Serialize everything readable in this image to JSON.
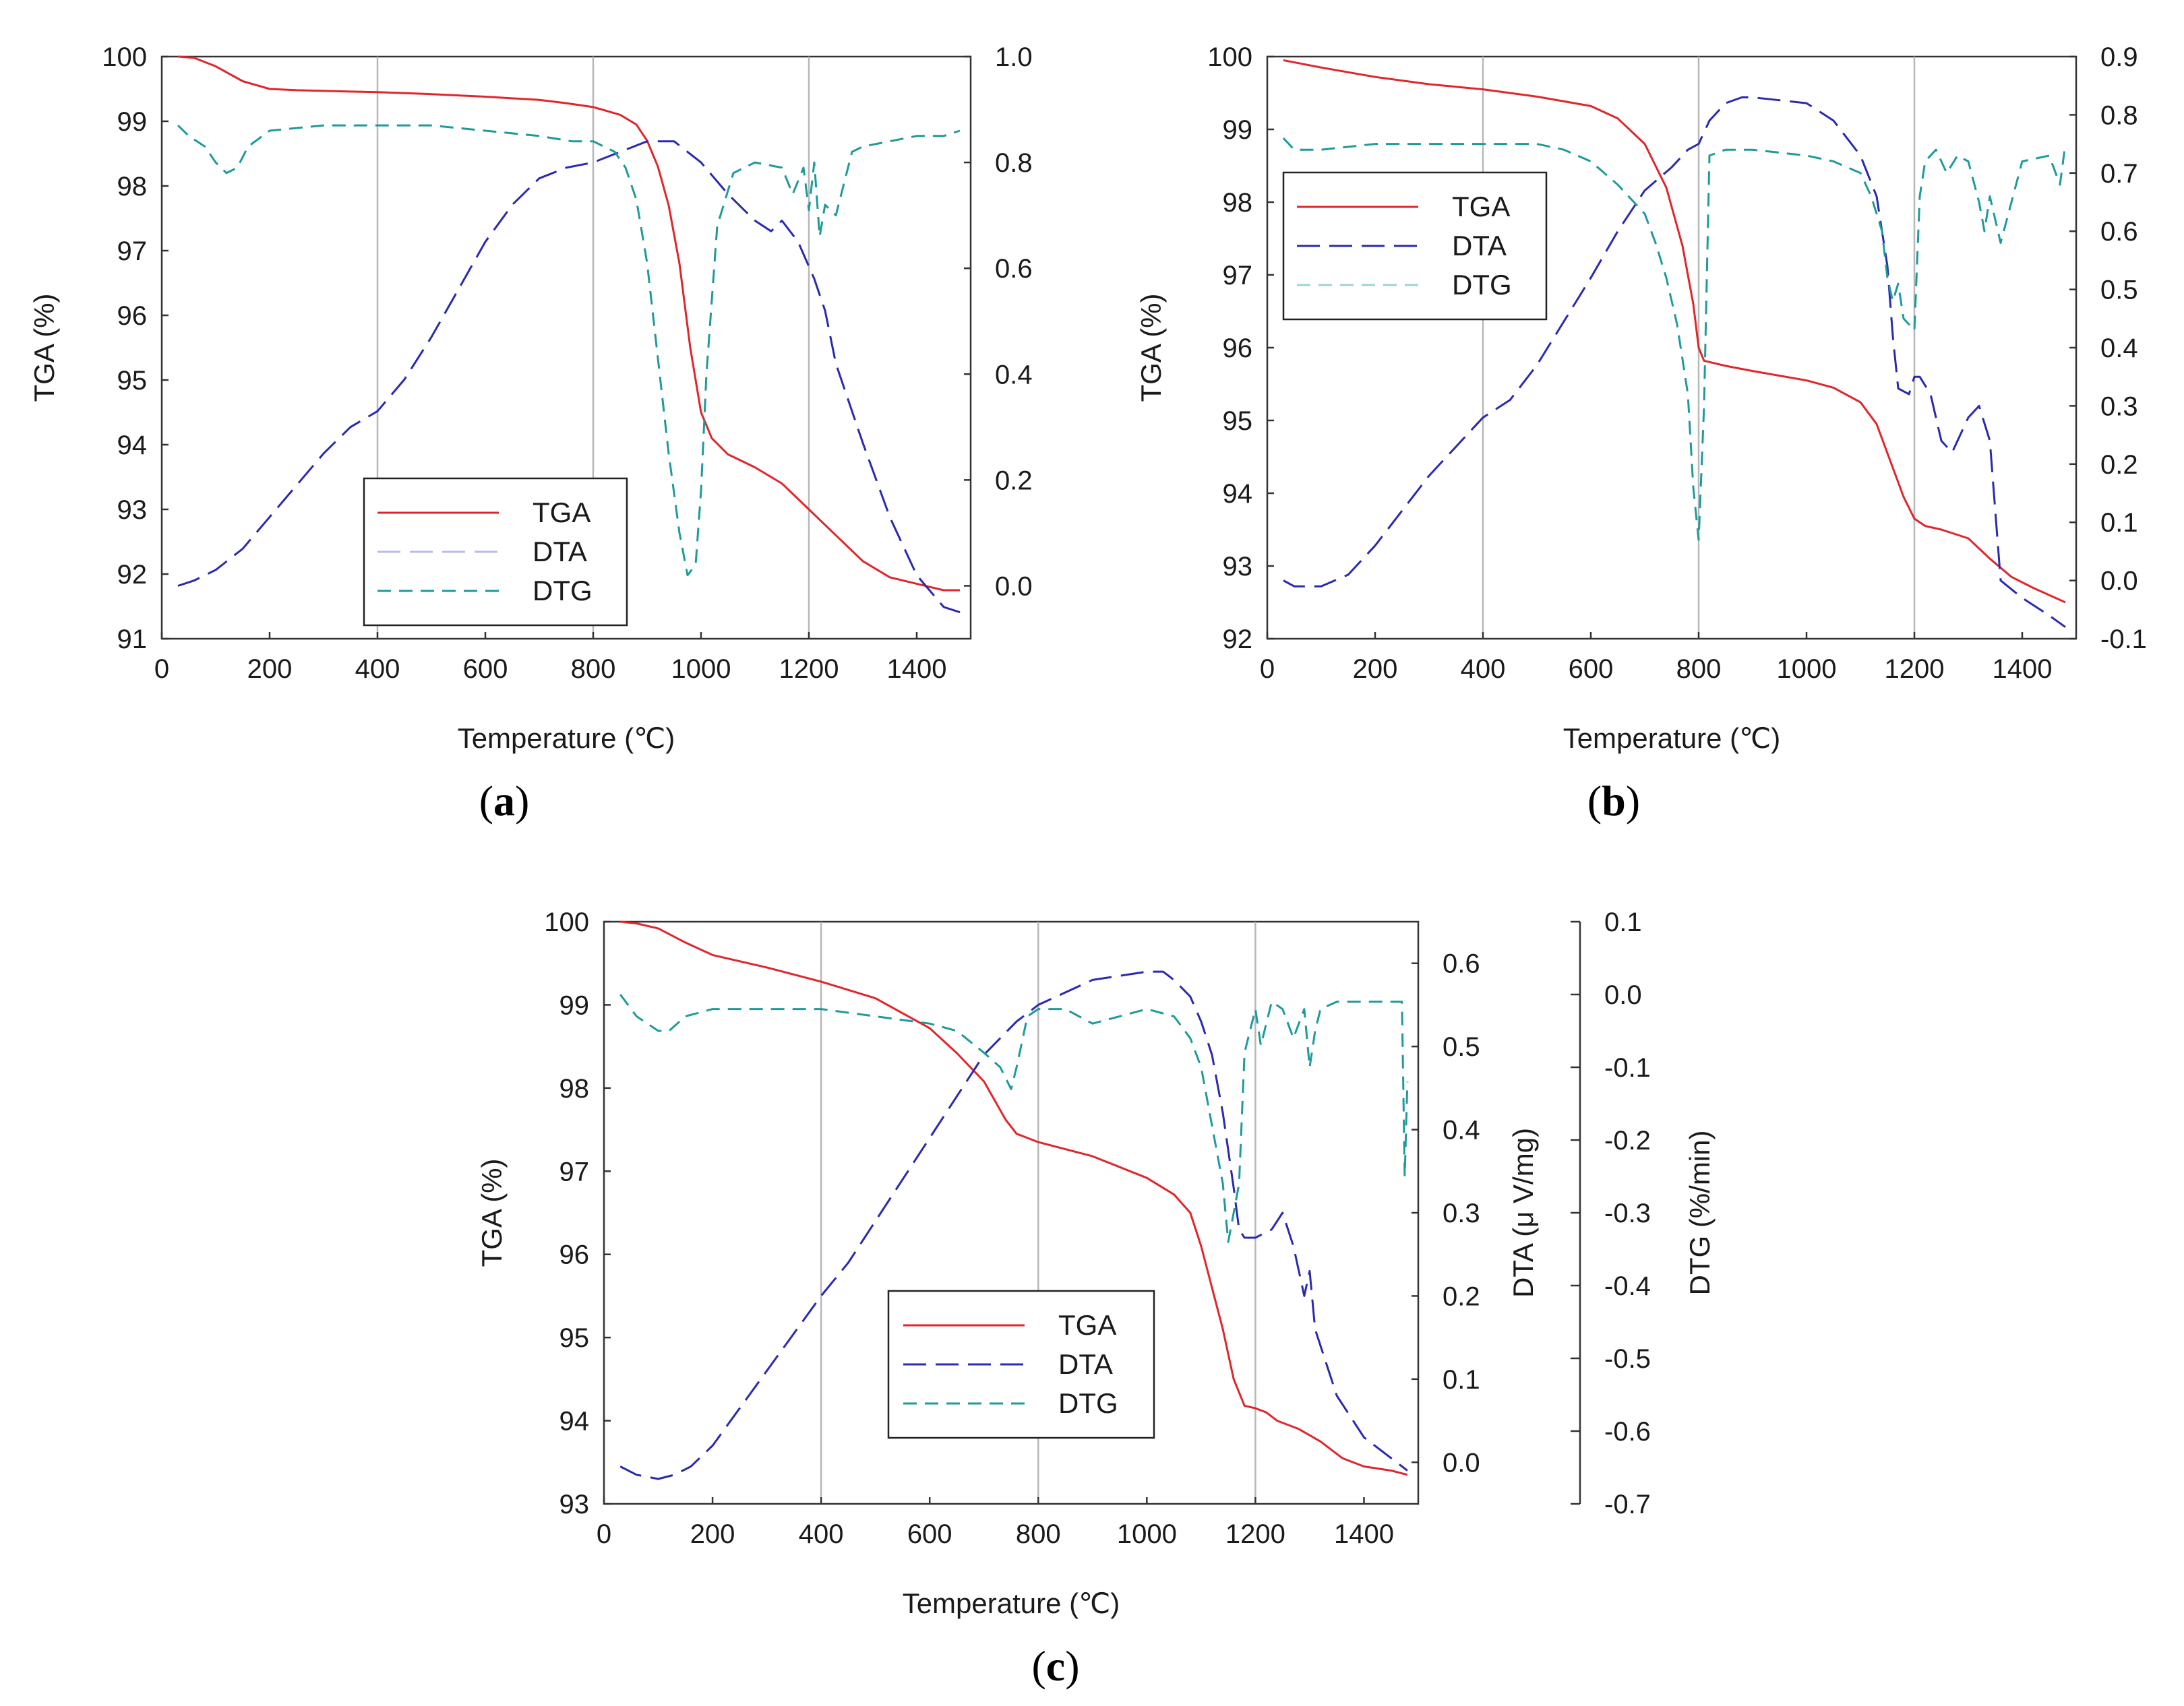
{
  "figure": {
    "colors": {
      "tga": "#e0262a",
      "dta": "#2a2ab0",
      "dtg": "#1f9a9a",
      "grid": "#b8b8b8",
      "axis": "#333333"
    }
  },
  "chart_data": [
    {
      "id": "a",
      "type": "line",
      "panel_label_parts": [
        "(",
        "a",
        ")"
      ],
      "xlabel": "Temperature (℃)",
      "ylabel": "TGA (%)",
      "y2label": "",
      "y3label": "",
      "xlim": [
        0,
        1500
      ],
      "ylim": [
        91,
        100
      ],
      "y2lim": [
        -0.1,
        1.0
      ],
      "xticks": [
        0,
        200,
        400,
        600,
        800,
        1000,
        1200,
        1400
      ],
      "yticks": [
        91,
        92,
        93,
        94,
        95,
        96,
        97,
        98,
        99,
        100
      ],
      "y2ticks": [
        0.0,
        0.2,
        0.4,
        0.6,
        0.8,
        1.0
      ],
      "y2tick_labels": [
        "0.0",
        "0.2",
        "0.4",
        "0.6",
        "0.8",
        "1.0"
      ],
      "grid_x": [
        400,
        800,
        1200
      ],
      "legend": {
        "placement": "bottom-center",
        "entries": [
          "TGA",
          "DTA",
          "DTG"
        ]
      },
      "series": [
        {
          "name": "TGA",
          "axis": "left",
          "x": [
            30,
            60,
            100,
            150,
            200,
            250,
            300,
            400,
            500,
            600,
            700,
            750,
            800,
            850,
            880,
            900,
            920,
            940,
            960,
            980,
            1000,
            1020,
            1050,
            1100,
            1150,
            1200,
            1250,
            1300,
            1350,
            1400,
            1450,
            1480
          ],
          "y": [
            100,
            99.98,
            99.85,
            99.62,
            99.5,
            99.48,
            99.47,
            99.45,
            99.42,
            99.38,
            99.33,
            99.28,
            99.22,
            99.1,
            98.95,
            98.7,
            98.3,
            97.7,
            96.8,
            95.5,
            94.5,
            94.1,
            93.85,
            93.65,
            93.4,
            93.0,
            92.6,
            92.2,
            91.95,
            91.85,
            91.75,
            91.75
          ]
        },
        {
          "name": "DTA",
          "axis": "right",
          "x": [
            30,
            60,
            100,
            150,
            200,
            250,
            300,
            350,
            400,
            450,
            500,
            550,
            600,
            650,
            700,
            750,
            800,
            850,
            900,
            950,
            1000,
            1050,
            1100,
            1130,
            1150,
            1180,
            1210,
            1230,
            1250,
            1300,
            1350,
            1400,
            1450,
            1480
          ],
          "y": [
            0.0,
            0.01,
            0.03,
            0.07,
            0.13,
            0.19,
            0.25,
            0.3,
            0.33,
            0.39,
            0.47,
            0.56,
            0.65,
            0.72,
            0.77,
            0.79,
            0.8,
            0.82,
            0.84,
            0.84,
            0.8,
            0.74,
            0.69,
            0.67,
            0.69,
            0.65,
            0.58,
            0.52,
            0.42,
            0.27,
            0.13,
            0.02,
            -0.04,
            -0.05
          ]
        },
        {
          "name": "DTG",
          "axis": "right",
          "x": [
            30,
            50,
            80,
            100,
            120,
            140,
            160,
            200,
            300,
            400,
            500,
            600,
            700,
            760,
            800,
            840,
            860,
            880,
            900,
            920,
            940,
            960,
            975,
            990,
            1000,
            1010,
            1030,
            1060,
            1100,
            1150,
            1170,
            1190,
            1200,
            1210,
            1220,
            1230,
            1250,
            1280,
            1300,
            1350,
            1400,
            1450,
            1480
          ],
          "y": [
            0.87,
            0.85,
            0.83,
            0.8,
            0.78,
            0.79,
            0.83,
            0.86,
            0.87,
            0.87,
            0.87,
            0.86,
            0.85,
            0.84,
            0.84,
            0.82,
            0.79,
            0.73,
            0.61,
            0.43,
            0.25,
            0.1,
            0.02,
            0.04,
            0.18,
            0.4,
            0.68,
            0.78,
            0.8,
            0.79,
            0.74,
            0.79,
            0.71,
            0.8,
            0.66,
            0.72,
            0.7,
            0.82,
            0.83,
            0.84,
            0.85,
            0.85,
            0.86
          ]
        }
      ]
    },
    {
      "id": "b",
      "type": "line",
      "panel_label_parts": [
        "(",
        "b",
        ")"
      ],
      "xlabel": "Temperature (℃)",
      "ylabel": "TGA (%)",
      "y2label": "",
      "y3label": "",
      "xlim": [
        0,
        1500
      ],
      "ylim": [
        92,
        100
      ],
      "y2lim": [
        -0.1,
        0.9
      ],
      "xticks": [
        0,
        200,
        400,
        600,
        800,
        1000,
        1200,
        1400
      ],
      "yticks": [
        92,
        93,
        94,
        95,
        96,
        97,
        98,
        99,
        100
      ],
      "y2ticks": [
        -0.1,
        0.0,
        0.1,
        0.2,
        0.3,
        0.4,
        0.5,
        0.6,
        0.7,
        0.8,
        0.9
      ],
      "y2tick_labels": [
        "-0.1",
        "0.0",
        "0.1",
        "0.2",
        "0.3",
        "0.4",
        "0.5",
        "0.6",
        "0.7",
        "0.8",
        "0.9"
      ],
      "grid_x": [
        400,
        800,
        1200
      ],
      "legend": {
        "placement": "top-left",
        "entries": [
          "TGA",
          "DTA",
          "DTG"
        ]
      },
      "series": [
        {
          "name": "TGA",
          "axis": "left",
          "x": [
            30,
            100,
            200,
            300,
            400,
            500,
            600,
            650,
            700,
            740,
            770,
            790,
            800,
            810,
            850,
            900,
            1000,
            1050,
            1100,
            1130,
            1150,
            1180,
            1200,
            1220,
            1250,
            1300,
            1340,
            1380,
            1420,
            1480
          ],
          "y": [
            99.95,
            99.85,
            99.72,
            99.62,
            99.55,
            99.45,
            99.32,
            99.15,
            98.8,
            98.2,
            97.4,
            96.6,
            96.0,
            95.82,
            95.75,
            95.68,
            95.55,
            95.45,
            95.25,
            94.95,
            94.55,
            93.95,
            93.65,
            93.55,
            93.5,
            93.38,
            93.1,
            92.85,
            92.7,
            92.5
          ]
        },
        {
          "name": "DTA",
          "axis": "right",
          "x": [
            30,
            50,
            100,
            150,
            200,
            300,
            400,
            450,
            500,
            600,
            650,
            700,
            750,
            780,
            800,
            820,
            850,
            880,
            900,
            1000,
            1050,
            1100,
            1130,
            1150,
            1160,
            1170,
            1190,
            1200,
            1210,
            1230,
            1250,
            1270,
            1300,
            1320,
            1340,
            1350,
            1360,
            1400,
            1450,
            1480
          ],
          "y": [
            0.0,
            -0.01,
            -0.01,
            0.01,
            0.06,
            0.18,
            0.28,
            0.31,
            0.37,
            0.52,
            0.6,
            0.67,
            0.71,
            0.74,
            0.75,
            0.79,
            0.82,
            0.83,
            0.83,
            0.82,
            0.79,
            0.73,
            0.66,
            0.54,
            0.42,
            0.33,
            0.32,
            0.35,
            0.35,
            0.32,
            0.24,
            0.22,
            0.28,
            0.3,
            0.24,
            0.12,
            0.0,
            -0.03,
            -0.06,
            -0.08
          ]
        },
        {
          "name": "DTG",
          "axis": "right",
          "x": [
            30,
            50,
            100,
            200,
            300,
            400,
            500,
            550,
            600,
            650,
            700,
            720,
            740,
            760,
            780,
            790,
            800,
            810,
            820,
            850,
            900,
            1000,
            1050,
            1100,
            1120,
            1140,
            1150,
            1160,
            1170,
            1180,
            1190,
            1200,
            1210,
            1220,
            1240,
            1260,
            1280,
            1300,
            1320,
            1330,
            1340,
            1360,
            1400,
            1450,
            1470,
            1480
          ],
          "y": [
            0.76,
            0.74,
            0.74,
            0.75,
            0.75,
            0.75,
            0.75,
            0.74,
            0.72,
            0.68,
            0.63,
            0.58,
            0.52,
            0.44,
            0.32,
            0.16,
            0.07,
            0.3,
            0.73,
            0.74,
            0.74,
            0.73,
            0.72,
            0.7,
            0.66,
            0.6,
            0.52,
            0.48,
            0.51,
            0.45,
            0.44,
            0.43,
            0.66,
            0.72,
            0.74,
            0.7,
            0.73,
            0.72,
            0.65,
            0.6,
            0.66,
            0.58,
            0.72,
            0.73,
            0.68,
            0.75
          ]
        }
      ]
    },
    {
      "id": "c",
      "type": "line",
      "panel_label_parts": [
        "(",
        "c",
        ")"
      ],
      "xlabel": "Temperature (℃)",
      "ylabel": "TGA (%)",
      "y2label": "DTA (μ V/mg)",
      "y3label": "DTG (%/min)",
      "xlim": [
        0,
        1500
      ],
      "ylim": [
        93,
        100
      ],
      "y2lim": [
        -0.05,
        0.65
      ],
      "y3lim": [
        -0.7,
        0.1
      ],
      "xticks": [
        0,
        200,
        400,
        600,
        800,
        1000,
        1200,
        1400
      ],
      "yticks": [
        93,
        94,
        95,
        96,
        97,
        98,
        99,
        100
      ],
      "y2ticks": [
        0.0,
        0.1,
        0.2,
        0.3,
        0.4,
        0.5,
        0.6
      ],
      "y2tick_labels": [
        "0.0",
        "0.1",
        "0.2",
        "0.3",
        "0.4",
        "0.5",
        "0.6"
      ],
      "y3ticks": [
        -0.7,
        -0.6,
        -0.5,
        -0.4,
        -0.3,
        -0.2,
        -0.1,
        0.0,
        0.1
      ],
      "y3tick_labels": [
        "-0.7",
        "-0.6",
        "-0.5",
        "-0.4",
        "-0.3",
        "-0.2",
        "-0.1",
        "0.0",
        "0.1"
      ],
      "grid_x": [
        400,
        800,
        1200
      ],
      "legend": {
        "placement": "bottom-center",
        "entries": [
          "TGA",
          "DTA",
          "DTG"
        ]
      },
      "series": [
        {
          "name": "TGA",
          "axis": "left",
          "x": [
            30,
            60,
            100,
            150,
            200,
            300,
            400,
            500,
            600,
            650,
            700,
            740,
            760,
            780,
            800,
            900,
            1000,
            1050,
            1080,
            1100,
            1120,
            1140,
            1160,
            1180,
            1200,
            1220,
            1240,
            1280,
            1320,
            1360,
            1400,
            1450,
            1480
          ],
          "y": [
            100,
            99.98,
            99.92,
            99.75,
            99.6,
            99.45,
            99.28,
            99.08,
            98.72,
            98.42,
            98.08,
            97.62,
            97.45,
            97.4,
            97.35,
            97.18,
            96.92,
            96.72,
            96.5,
            96.1,
            95.6,
            95.1,
            94.5,
            94.18,
            94.15,
            94.1,
            94.0,
            93.9,
            93.75,
            93.55,
            93.45,
            93.4,
            93.35
          ]
        },
        {
          "name": "DTA",
          "axis": "right",
          "x": [
            30,
            60,
            100,
            130,
            160,
            200,
            300,
            400,
            450,
            500,
            600,
            700,
            760,
            780,
            800,
            900,
            1000,
            1030,
            1050,
            1080,
            1100,
            1120,
            1140,
            1160,
            1170,
            1180,
            1200,
            1230,
            1250,
            1270,
            1290,
            1300,
            1310,
            1330,
            1350,
            1400,
            1450,
            1480
          ],
          "y": [
            -0.005,
            -0.015,
            -0.02,
            -0.015,
            -0.005,
            0.02,
            0.11,
            0.2,
            0.24,
            0.29,
            0.39,
            0.49,
            0.53,
            0.54,
            0.55,
            0.58,
            0.59,
            0.59,
            0.58,
            0.56,
            0.53,
            0.49,
            0.42,
            0.33,
            0.28,
            0.27,
            0.27,
            0.28,
            0.3,
            0.26,
            0.2,
            0.23,
            0.16,
            0.12,
            0.08,
            0.03,
            0.005,
            -0.01
          ]
        },
        {
          "name": "DTG",
          "axis": "right3",
          "x": [
            30,
            60,
            100,
            120,
            150,
            200,
            300,
            400,
            500,
            600,
            650,
            700,
            730,
            750,
            760,
            780,
            800,
            850,
            900,
            950,
            1000,
            1050,
            1080,
            1100,
            1120,
            1140,
            1150,
            1160,
            1170,
            1180,
            1200,
            1210,
            1230,
            1250,
            1270,
            1290,
            1300,
            1310,
            1320,
            1350,
            1400,
            1450,
            1470,
            1475,
            1480
          ],
          "y": [
            0.0,
            -0.03,
            -0.05,
            -0.05,
            -0.03,
            -0.02,
            -0.02,
            -0.02,
            -0.03,
            -0.04,
            -0.05,
            -0.08,
            -0.1,
            -0.13,
            -0.1,
            -0.03,
            -0.02,
            -0.02,
            -0.04,
            -0.03,
            -0.02,
            -0.03,
            -0.06,
            -0.1,
            -0.18,
            -0.26,
            -0.34,
            -0.3,
            -0.26,
            -0.08,
            -0.02,
            -0.07,
            -0.01,
            -0.02,
            -0.06,
            -0.02,
            -0.1,
            -0.05,
            -0.02,
            -0.01,
            -0.01,
            -0.01,
            -0.01,
            -0.25,
            -0.12
          ]
        }
      ]
    }
  ]
}
